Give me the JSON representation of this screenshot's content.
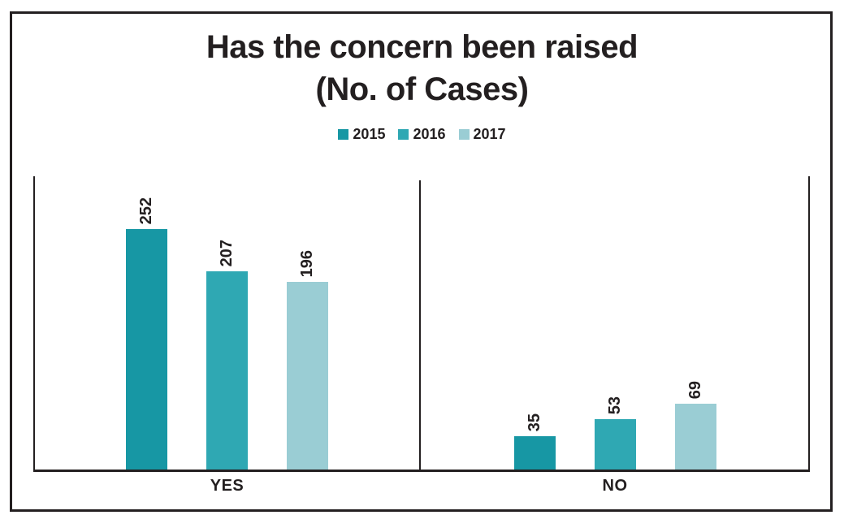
{
  "title": {
    "line1": "Has the concern been raised",
    "line2": "(No. of Cases)"
  },
  "chart_data": {
    "type": "bar",
    "title": "Has the concern been raised (No. of Cases)",
    "categories": [
      "YES",
      "NO"
    ],
    "series": [
      {
        "name": "2015",
        "color": "#1797a4",
        "values": [
          252,
          35
        ]
      },
      {
        "name": "2016",
        "color": "#2fa8b3",
        "values": [
          207,
          53
        ]
      },
      {
        "name": "2017",
        "color": "#9acdd4",
        "values": [
          196,
          69
        ]
      }
    ],
    "xlabel": "",
    "ylabel": "",
    "ylim": [
      0,
      306
    ],
    "grid": false,
    "legend_position": "top-center",
    "data_labels": "rotated-90-above-bars"
  },
  "colors": {
    "text_and_lines": "#231f20",
    "background": "#ffffff"
  }
}
